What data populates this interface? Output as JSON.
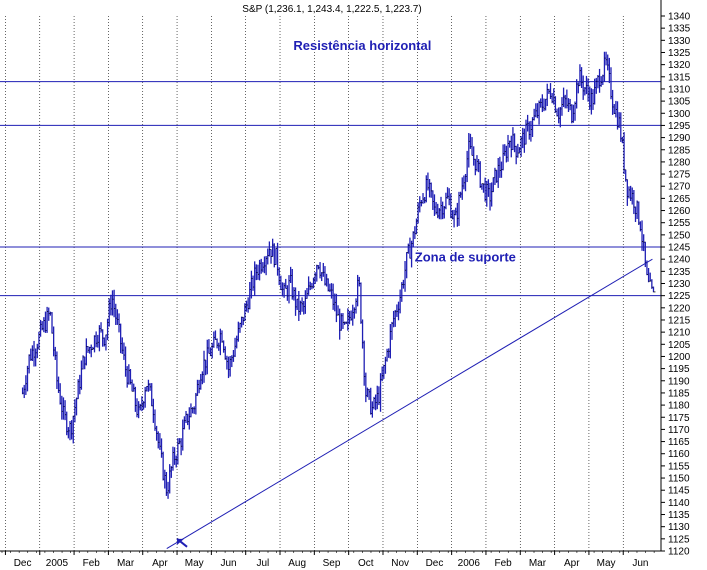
{
  "chart_data": {
    "type": "line",
    "subtype": "ohlc-bars",
    "title": "S&P (1,236.1, 1,243.4, 1,222.5, 1,223.7)",
    "colors": {
      "price": "#1f1fb4",
      "lines": "#1f1fb4",
      "grid": "#000000",
      "background": "#ffffff"
    },
    "ylim": [
      1120,
      1340
    ],
    "y_ticks": [
      1120,
      1125,
      1130,
      1135,
      1140,
      1145,
      1150,
      1155,
      1160,
      1165,
      1170,
      1175,
      1180,
      1185,
      1190,
      1195,
      1200,
      1205,
      1210,
      1215,
      1220,
      1225,
      1230,
      1235,
      1240,
      1245,
      1250,
      1255,
      1260,
      1265,
      1270,
      1275,
      1280,
      1285,
      1290,
      1295,
      1300,
      1305,
      1310,
      1315,
      1320,
      1325,
      1330,
      1335,
      1340
    ],
    "y_axis_side": "right",
    "x_labels": [
      "Dec",
      "2005",
      "Feb",
      "Mar",
      "Apr",
      "May",
      "Jun",
      "Jul",
      "Aug",
      "Sep",
      "Oct",
      "Nov",
      "Dec",
      "2006",
      "Feb",
      "Mar",
      "Apr",
      "May",
      "Jun"
    ],
    "x_label_positions": [
      0,
      1,
      2,
      3,
      4,
      5,
      6,
      7,
      8,
      9,
      10,
      11,
      12,
      13,
      14,
      15,
      16,
      17,
      18
    ],
    "xlim": [
      -0.6,
      18.6
    ],
    "series": [
      {
        "x": [
          0.0,
          0.2,
          0.4,
          0.6,
          0.8,
          1.0,
          1.2,
          1.4,
          1.6,
          1.8,
          2.0,
          2.2,
          2.4,
          2.6,
          2.8,
          3.0,
          3.2,
          3.4,
          3.6,
          3.8,
          4.0,
          4.2,
          4.4,
          4.6,
          4.8,
          5.0,
          5.2,
          5.4,
          5.6,
          5.8,
          6.0,
          6.2,
          6.4,
          6.6,
          6.8,
          7.0,
          7.2,
          7.4,
          7.6,
          7.8,
          8.0,
          8.2,
          8.4,
          8.6,
          8.8,
          9.0,
          9.2,
          9.4,
          9.6,
          9.8,
          10.0,
          10.2,
          10.4,
          10.6,
          10.8,
          11.0,
          11.2,
          11.4,
          11.6,
          11.8,
          12.0,
          12.2,
          12.4,
          12.6,
          12.8,
          13.0,
          13.2,
          13.4,
          13.6,
          13.8,
          14.0,
          14.2,
          14.4,
          14.6,
          14.8,
          15.0,
          15.2,
          15.4,
          15.6,
          15.8,
          16.0,
          16.2,
          16.4,
          16.6,
          16.8,
          17.0,
          17.2,
          17.4,
          17.6,
          17.8,
          18.0,
          18.2,
          18.4
        ],
        "values": [
          1185,
          1200,
          1205,
          1212,
          1218,
          1190,
          1175,
          1170,
          1185,
          1200,
          1205,
          1210,
          1208,
          1225,
          1210,
          1195,
          1185,
          1175,
          1190,
          1180,
          1160,
          1145,
          1158,
          1165,
          1175,
          1180,
          1195,
          1200,
          1205,
          1210,
          1195,
          1205,
          1215,
          1225,
          1235,
          1240,
          1245,
          1240,
          1225,
          1230,
          1220,
          1220,
          1230,
          1240,
          1230,
          1225,
          1215,
          1210,
          1220,
          1230,
          1185,
          1178,
          1185,
          1200,
          1215,
          1225,
          1240,
          1250,
          1265,
          1270,
          1260,
          1262,
          1265,
          1255,
          1270,
          1285,
          1280,
          1270,
          1265,
          1275,
          1280,
          1290,
          1285,
          1290,
          1295,
          1300,
          1305,
          1310,
          1300,
          1305,
          1300,
          1315,
          1310,
          1305,
          1315,
          1320,
          1305,
          1295,
          1270,
          1265,
          1255,
          1230,
          1223.7
        ]
      }
    ],
    "horizontal_lines": [
      1313,
      1295,
      1245,
      1225
    ],
    "trendline": {
      "x": [
        4.2,
        18.35
      ],
      "values": [
        1121,
        1240
      ]
    },
    "annotations": [
      {
        "text": "Resistência horizontal",
        "x": 9.9,
        "value": 1326
      },
      {
        "text": "Zona de suporte",
        "x": 12.9,
        "value": 1239
      }
    ],
    "arrow": {
      "x": 4.5,
      "value": 1125
    }
  }
}
